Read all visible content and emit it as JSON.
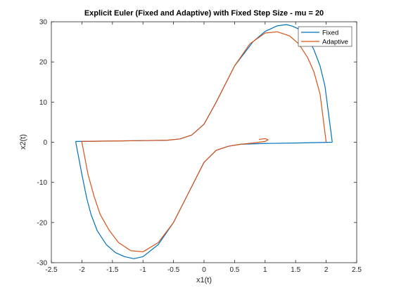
{
  "chart_data": {
    "type": "line",
    "title": "Explicit Euler (Fixed and Adaptive) with Fixed Step Size - mu = 20",
    "xlabel": "x1(t)",
    "ylabel": "x2(t)",
    "xlim": [
      -2.5,
      2.5
    ],
    "ylim": [
      -30,
      30
    ],
    "xticks": [
      -2.5,
      -2,
      -1.5,
      -1,
      -0.5,
      0,
      0.5,
      1,
      1.5,
      2,
      2.5
    ],
    "xtick_labels": [
      "-2.5",
      "-2",
      "-1.5",
      "-1",
      "-0.5",
      "0",
      "0.5",
      "1",
      "1.5",
      "2",
      "2.5"
    ],
    "yticks": [
      -30,
      -20,
      -10,
      0,
      10,
      20,
      30
    ],
    "ytick_labels": [
      "-30",
      "-20",
      "-10",
      "0",
      "10",
      "20",
      "30"
    ],
    "grid": false,
    "legend_position": "top-right",
    "series": [
      {
        "name": "Fixed",
        "color": "#0072BD",
        "points": [
          [
            2.1,
            0
          ],
          [
            1.98,
            14
          ],
          [
            1.9,
            19
          ],
          [
            1.8,
            23
          ],
          [
            1.7,
            26
          ],
          [
            1.58,
            28
          ],
          [
            1.45,
            28.9
          ],
          [
            1.35,
            29.3
          ],
          [
            1.2,
            29
          ],
          [
            1.0,
            27.6
          ],
          [
            0.8,
            25
          ],
          [
            0.5,
            19
          ],
          [
            0.2,
            10
          ],
          [
            0.0,
            4.5
          ],
          [
            -0.2,
            1.8
          ],
          [
            -0.4,
            0.8
          ],
          [
            -0.6,
            0.5
          ],
          [
            -1.0,
            0.4
          ],
          [
            -1.5,
            0.3
          ],
          [
            -2.1,
            0.2
          ],
          [
            -2.1,
            0
          ],
          [
            -2.0,
            -8
          ],
          [
            -1.92,
            -14
          ],
          [
            -1.85,
            -18
          ],
          [
            -1.75,
            -22
          ],
          [
            -1.6,
            -25.5
          ],
          [
            -1.45,
            -27.5
          ],
          [
            -1.3,
            -28.5
          ],
          [
            -1.15,
            -29
          ],
          [
            -1.0,
            -28.5
          ],
          [
            -0.75,
            -25.5
          ],
          [
            -0.5,
            -20
          ],
          [
            -0.2,
            -11
          ],
          [
            0.0,
            -5
          ],
          [
            0.2,
            -2
          ],
          [
            0.4,
            -1
          ],
          [
            0.6,
            -0.5
          ],
          [
            1.0,
            -0.3
          ],
          [
            1.5,
            -0.2
          ],
          [
            2.1,
            0
          ]
        ]
      },
      {
        "name": "Adaptive",
        "color": "#D95319",
        "points": [
          [
            2.0,
            0
          ],
          [
            1.9,
            12
          ],
          [
            1.8,
            17.5
          ],
          [
            1.7,
            21
          ],
          [
            1.55,
            24.5
          ],
          [
            1.4,
            26.5
          ],
          [
            1.2,
            27.5
          ],
          [
            1.0,
            27.2
          ],
          [
            0.75,
            24.5
          ],
          [
            0.5,
            19
          ],
          [
            0.2,
            10
          ],
          [
            0.0,
            4.5
          ],
          [
            -0.2,
            1.8
          ],
          [
            -0.4,
            0.8
          ],
          [
            -0.6,
            0.5
          ],
          [
            -1.0,
            0.4
          ],
          [
            -1.5,
            0.3
          ],
          [
            -2.0,
            0.2
          ],
          [
            -2.0,
            0
          ],
          [
            -1.9,
            -8
          ],
          [
            -1.8,
            -13.5
          ],
          [
            -1.7,
            -18
          ],
          [
            -1.55,
            -22
          ],
          [
            -1.4,
            -25
          ],
          [
            -1.2,
            -27
          ],
          [
            -1.0,
            -27.3
          ],
          [
            -0.75,
            -25
          ],
          [
            -0.5,
            -20
          ],
          [
            -0.2,
            -11
          ],
          [
            0.0,
            -5
          ],
          [
            0.2,
            -2
          ],
          [
            0.4,
            -1
          ],
          [
            0.6,
            -0.5
          ],
          [
            0.8,
            -0.2
          ],
          [
            1.0,
            0.2
          ],
          [
            1.05,
            0.6
          ],
          [
            1.0,
            0.9
          ],
          [
            0.95,
            0.8
          ],
          [
            0.9,
            0.7
          ]
        ]
      }
    ]
  }
}
